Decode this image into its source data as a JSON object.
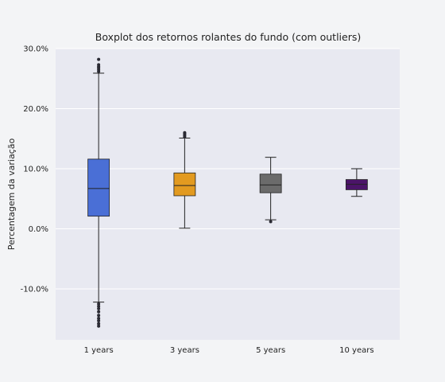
{
  "chart_data": {
    "type": "box",
    "title": "Boxplot dos retornos rolantes do fundo (com outliers)",
    "xlabel": "",
    "ylabel": "Percentagem da variação",
    "ylim": [
      -18.5,
      30.0
    ],
    "yticks": [
      30.0,
      20.0,
      10.0,
      0.0,
      -10.0
    ],
    "ytick_labels": [
      "30.0%",
      "20.0%",
      "10.0%",
      "0.0%",
      "-10.0%"
    ],
    "grid": true,
    "categories": [
      "1 years",
      "3 years",
      "5 years",
      "10 years"
    ],
    "boxes": [
      {
        "label": "1 years",
        "color": "#4a6fd6",
        "whisker_low": -12.2,
        "q1": 2.1,
        "median": 6.7,
        "q3": 11.6,
        "whisker_high": 25.9,
        "outliers": [
          26.2,
          26.5,
          26.8,
          27.0,
          27.3,
          28.2,
          -12.5,
          -12.9,
          -13.3,
          -13.8,
          -14.4,
          -14.9,
          -15.3,
          -15.8,
          -16.2
        ]
      },
      {
        "label": "3 years",
        "color": "#e29a20",
        "whisker_low": 0.1,
        "q1": 5.5,
        "median": 7.2,
        "q3": 9.3,
        "whisker_high": 15.1,
        "outliers": [
          15.3,
          15.5,
          15.7,
          15.9,
          16.0
        ]
      },
      {
        "label": "5 years",
        "color": "#6b6b6b",
        "whisker_low": 1.5,
        "q1": 6.0,
        "median": 7.3,
        "q3": 9.1,
        "whisker_high": 11.9,
        "outliers": [
          1.2
        ]
      },
      {
        "label": "10 years",
        "color": "#4b1469",
        "whisker_low": 5.4,
        "q1": 6.5,
        "median": 7.4,
        "q3": 8.2,
        "whisker_high": 10.0,
        "outliers": []
      }
    ]
  }
}
